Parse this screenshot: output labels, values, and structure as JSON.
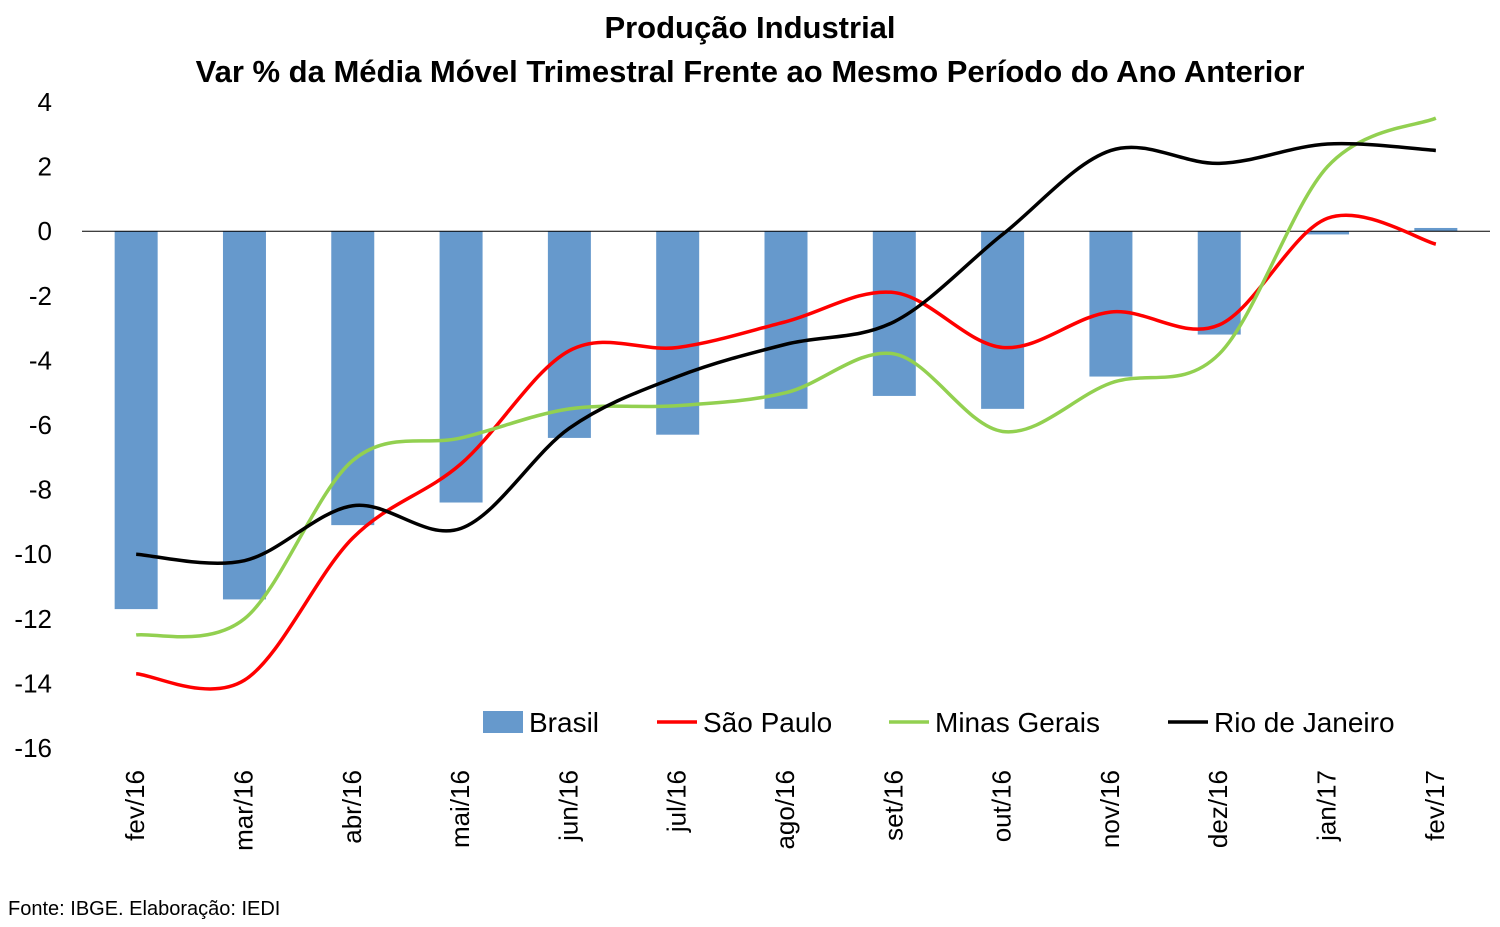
{
  "chart_data": {
    "type": "bar",
    "title": "Produção Industrial",
    "subtitle": "Var % da Média Móvel Trimestral Frente ao Mesmo Período do Ano Anterior",
    "categories": [
      "fev/16",
      "mar/16",
      "abr/16",
      "mai/16",
      "jun/16",
      "jul/16",
      "ago/16",
      "set/16",
      "out/16",
      "nov/16",
      "dez/16",
      "jan/17",
      "fev/17"
    ],
    "ylim": [
      -16,
      4
    ],
    "yticks": [
      4,
      2,
      0,
      -2,
      -4,
      -6,
      -8,
      -10,
      -12,
      -14,
      -16
    ],
    "grid": false,
    "legend_position": "bottom-right",
    "series": [
      {
        "name": "Brasil",
        "type": "bar",
        "color": "#6699CC",
        "values": [
          -11.7,
          -11.4,
          -9.1,
          -8.4,
          -6.4,
          -6.3,
          -5.5,
          -5.1,
          -5.5,
          -4.5,
          -3.2,
          -0.1,
          0.1
        ]
      },
      {
        "name": "São Paulo",
        "type": "line",
        "color": "#FF0000",
        "values": [
          -13.7,
          -13.9,
          -9.5,
          -7.2,
          -3.7,
          -3.6,
          -2.8,
          -1.9,
          -3.6,
          -2.5,
          -2.9,
          0.4,
          -0.4
        ]
      },
      {
        "name": "Minas Gerais",
        "type": "line",
        "color": "#92D050",
        "values": [
          -12.5,
          -12.0,
          -7.1,
          -6.4,
          -5.5,
          -5.4,
          -5.0,
          -3.8,
          -6.2,
          -4.7,
          -3.8,
          2.0,
          3.5
        ]
      },
      {
        "name": "Rio de Janeiro",
        "type": "line",
        "color": "#000000",
        "values": [
          -10.0,
          -10.2,
          -8.5,
          -9.2,
          -6.1,
          -4.5,
          -3.5,
          -2.8,
          -0.1,
          2.5,
          2.1,
          2.7,
          2.5
        ]
      }
    ]
  },
  "source": "Fonte: IBGE. Elaboração: IEDI"
}
